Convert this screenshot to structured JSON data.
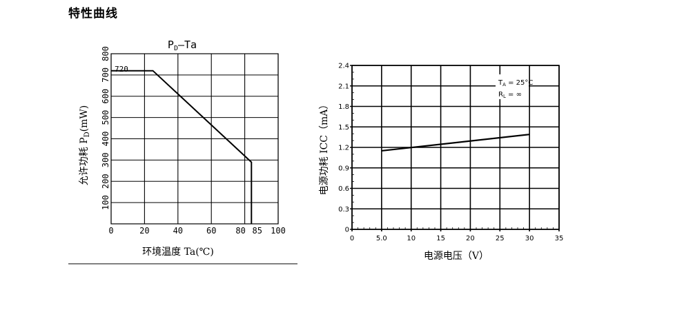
{
  "page": {
    "section_title": "特性曲线"
  },
  "chart_data": [
    {
      "type": "line",
      "title_main": "P",
      "title_sub": "D",
      "title_rest": "—Ta",
      "xlabel": "环境温度  Ta(℃)",
      "ylabel_main": "允许功耗  P",
      "ylabel_sub": "D",
      "ylabel_rest": "(mW)",
      "xlim": [
        0,
        100
      ],
      "ylim": [
        0,
        800
      ],
      "x_ticks": [
        "0",
        "20",
        "40",
        "60",
        "80",
        "85",
        "100"
      ],
      "x_tick_values": [
        0,
        20,
        40,
        60,
        80,
        85,
        100
      ],
      "y_ticks": [
        "100",
        "200",
        "300",
        "400",
        "500",
        "600",
        "700",
        "800"
      ],
      "y_tick_values": [
        100,
        200,
        300,
        400,
        500,
        600,
        700,
        800
      ],
      "annotation": "720",
      "grid": true,
      "series": [
        {
          "x": [
            0,
            25,
            84,
            84
          ],
          "y": [
            720,
            720,
            290,
            0
          ]
        }
      ]
    },
    {
      "type": "line",
      "xlabel": "电源电压（V）",
      "ylabel": "电源功耗 ICC（mA）",
      "xlim": [
        0,
        35
      ],
      "ylim": [
        0,
        2.4
      ],
      "x_ticks": [
        "0",
        "5.0",
        "10",
        "15",
        "20",
        "25",
        "30",
        "35"
      ],
      "x_tick_values": [
        0,
        5,
        10,
        15,
        20,
        25,
        30,
        35
      ],
      "y_ticks": [
        "0",
        "0.3",
        "0.6",
        "0.9",
        "1.2",
        "1.5",
        "1.8",
        "2.1",
        "2.4"
      ],
      "y_tick_values": [
        0,
        0.3,
        0.6,
        0.9,
        1.2,
        1.5,
        1.8,
        2.1,
        2.4
      ],
      "legend_line1_main": "T",
      "legend_line1_sub": "A",
      "legend_line1_rest": " = 25°C",
      "legend_line2_main": "R",
      "legend_line2_sub": "L",
      "legend_line2_rest": " = ∞",
      "grid": true,
      "series": [
        {
          "x": [
            5,
            30
          ],
          "y": [
            1.15,
            1.39
          ]
        }
      ]
    }
  ]
}
